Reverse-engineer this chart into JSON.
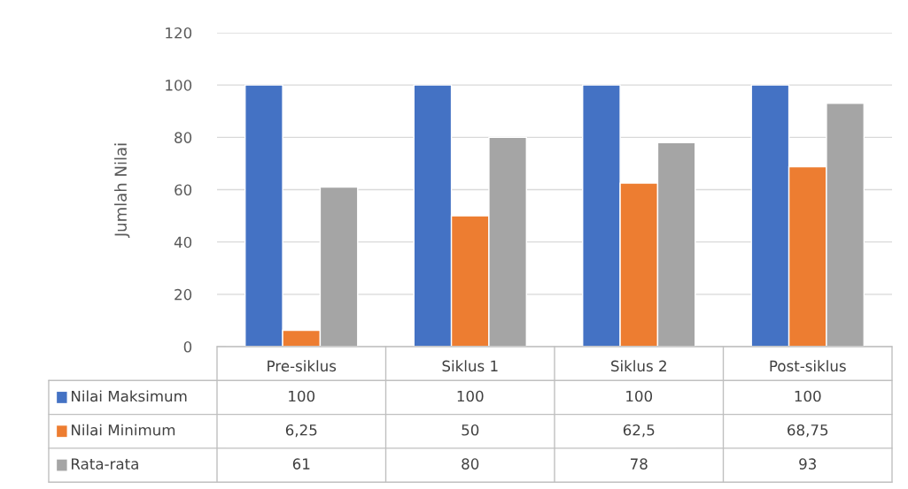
{
  "chart_data": {
    "type": "bar",
    "ylabel": "Jumlah Nilai",
    "categories": [
      "Pre-siklus",
      "Siklus 1",
      "Siklus 2",
      "Post-siklus"
    ],
    "series": [
      {
        "name": "Nilai Maksimum",
        "color": "#4472c4",
        "values": [
          100,
          100,
          100,
          100
        ],
        "value_labels": [
          "100",
          "100",
          "100",
          "100"
        ]
      },
      {
        "name": "Nilai Minimum",
        "color": "#ed7d31",
        "values": [
          6.25,
          50,
          62.5,
          68.75
        ],
        "value_labels": [
          "6,25",
          "50",
          "62,5",
          "68,75"
        ]
      },
      {
        "name": "Rata-rata",
        "color": "#a5a5a5",
        "values": [
          61,
          80,
          78,
          93
        ],
        "value_labels": [
          "61",
          "80",
          "78",
          "93"
        ]
      }
    ],
    "ylim": [
      0,
      120
    ],
    "yticks": [
      0,
      20,
      40,
      60,
      80,
      100,
      120
    ],
    "grid": "y",
    "legend": "bottom"
  }
}
